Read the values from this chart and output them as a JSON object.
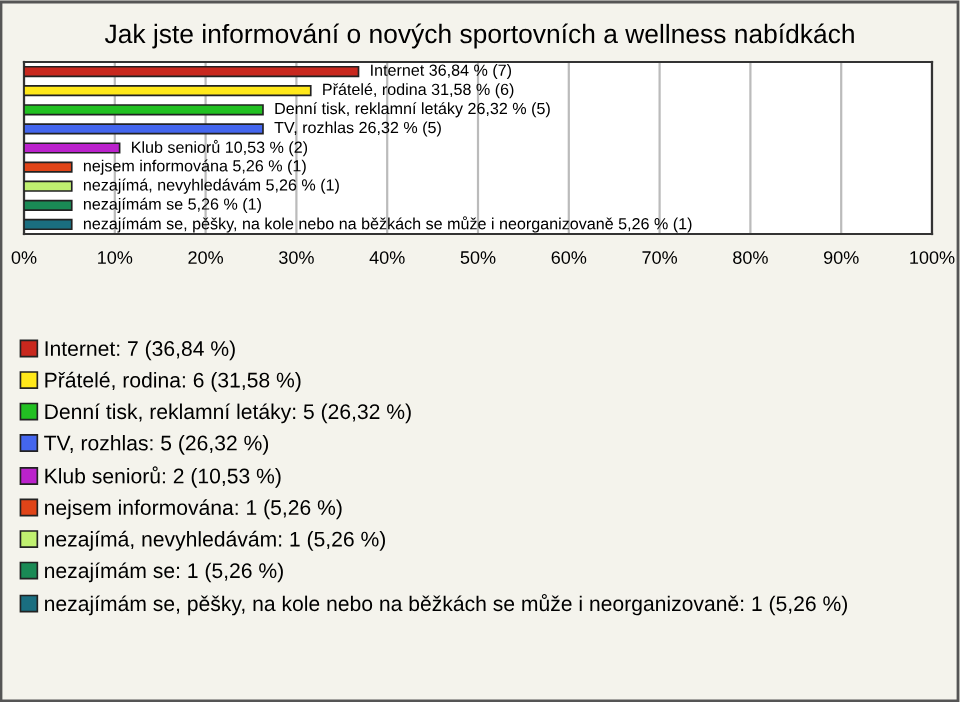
{
  "chart_data": {
    "type": "bar",
    "orientation": "horizontal",
    "title": "Jak jste informování o nových sportovních a wellness nabídkách",
    "categories": [
      null,
      null,
      null,
      null,
      null,
      null,
      null,
      null,
      null
    ],
    "series": [
      {
        "name": "Internet: 7 (36,84 %)",
        "color": "#c8281e",
        "values": [
          36.84,
          null,
          null,
          null,
          null,
          null,
          null,
          null,
          null
        ],
        "value_labels": [
          "Internet 36,84 % (7)",
          null,
          null,
          null,
          null,
          null,
          null,
          null,
          null
        ]
      },
      {
        "name": "Přátelé, rodina: 6 (31,58 %)",
        "color": "#ffe81a",
        "values": [
          null,
          31.58,
          null,
          null,
          null,
          null,
          null,
          null,
          null
        ],
        "value_labels": [
          null,
          "Přátelé, rodina 31,58 % (6)",
          null,
          null,
          null,
          null,
          null,
          null,
          null
        ]
      },
      {
        "name": "Denní tisk, reklamní letáky: 5 (26,32 %)",
        "color": "#22c022",
        "values": [
          null,
          null,
          26.32,
          null,
          null,
          null,
          null,
          null,
          null
        ],
        "value_labels": [
          null,
          null,
          "Denní tisk, reklamní letáky 26,32 % (5)",
          null,
          null,
          null,
          null,
          null,
          null
        ]
      },
      {
        "name": "TV, rozhlas: 5 (26,32 %)",
        "color": "#4466ee",
        "values": [
          null,
          null,
          null,
          26.32,
          null,
          null,
          null,
          null,
          null
        ],
        "value_labels": [
          null,
          null,
          null,
          "TV, rozhlas 26,32 % (5)",
          null,
          null,
          null,
          null,
          null
        ]
      },
      {
        "name": "Klub seniorů: 2 (10,53 %)",
        "color": "#bb22cc",
        "values": [
          null,
          null,
          null,
          null,
          10.53,
          null,
          null,
          null,
          null
        ],
        "value_labels": [
          null,
          null,
          null,
          null,
          "Klub seniorů 10,53 % (2)",
          null,
          null,
          null,
          null
        ]
      },
      {
        "name": "nejsem informována: 1 (5,26 %)",
        "color": "#e04418",
        "values": [
          null,
          null,
          null,
          null,
          null,
          5.26,
          null,
          null,
          null
        ],
        "value_labels": [
          null,
          null,
          null,
          null,
          null,
          "nejsem informována 5,26 % (1)",
          null,
          null,
          null
        ]
      },
      {
        "name": "nezajímá, nevyhledávám: 1 (5,26 %)",
        "color": "#c0f070",
        "values": [
          null,
          null,
          null,
          null,
          null,
          null,
          5.26,
          null,
          null
        ],
        "value_labels": [
          null,
          null,
          null,
          null,
          null,
          null,
          "nezajímá, nevyhledávám 5,26 % (1)",
          null,
          null
        ]
      },
      {
        "name": "nezajímám se: 1 (5,26 %)",
        "color": "#1a8a55",
        "values": [
          null,
          null,
          null,
          null,
          null,
          null,
          null,
          5.26,
          null
        ],
        "value_labels": [
          null,
          null,
          null,
          null,
          null,
          null,
          null,
          "nezajímám se 5,26 % (1)",
          null
        ]
      },
      {
        "name": "nezajímám se, pěšky, na kole nebo na běžkách se může i neorganizovaně: 1 (5,26 %)",
        "color": "#1a6e80",
        "values": [
          null,
          null,
          null,
          null,
          null,
          null,
          null,
          null,
          5.26
        ],
        "value_labels": [
          null,
          null,
          null,
          null,
          null,
          null,
          null,
          null,
          "nezajímám se, pěšky, na kole nebo na běžkách se může i neorganizovaně 5,26 % (1)"
        ]
      }
    ],
    "legend": "bottom",
    "xlim": [
      0,
      100
    ],
    "xticks": [
      {
        "value": 0,
        "label": "0%"
      },
      {
        "value": 10,
        "label": "10%"
      },
      {
        "value": 20,
        "label": "20%"
      },
      {
        "value": 30,
        "label": "30%"
      },
      {
        "value": 40,
        "label": "40%"
      },
      {
        "value": 50,
        "label": "50%"
      },
      {
        "value": 60,
        "label": "60%"
      },
      {
        "value": 70,
        "label": "70%"
      },
      {
        "value": 80,
        "label": "80%"
      },
      {
        "value": 90,
        "label": "90%"
      },
      {
        "value": 100,
        "label": "100%"
      }
    ],
    "grid": "x",
    "tick_labels": "x"
  }
}
